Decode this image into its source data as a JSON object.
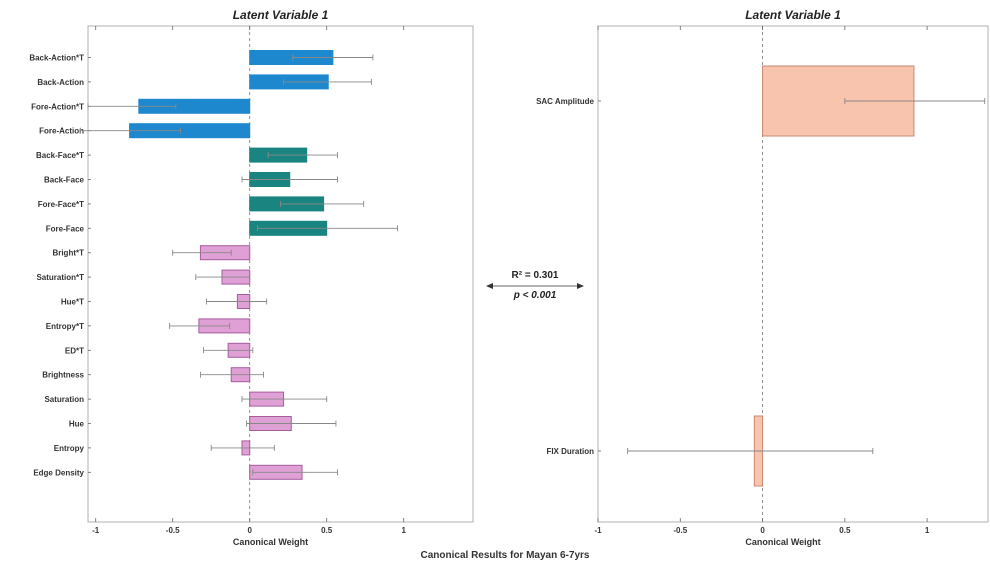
{
  "figure": {
    "suptitle": "Canonical Results for Mayan 6-7yrs",
    "annotation": {
      "r2_label": "R² = 0.301",
      "p_label": "p < 0.001"
    }
  },
  "chart_data": [
    {
      "type": "bar",
      "orientation": "horizontal",
      "title": "Latent Variable 1",
      "xlabel": "Canonical Weight",
      "xlim": [
        -1.05,
        1.45
      ],
      "xticks": [
        -1,
        -0.5,
        0,
        0.5,
        1
      ],
      "xtick_labels": [
        "-1",
        "-0.5",
        "0",
        "0.5",
        "1"
      ],
      "grid": false,
      "categories": [
        "Back-Action*T",
        "Back-Action",
        "Fore-Action*T",
        "Fore-Action",
        "Back-Face*T",
        "Back-Face",
        "Fore-Face*T",
        "Fore-Face",
        "Bright*T",
        "Saturation*T",
        "Hue*T",
        "Entropy*T",
        "ED*T",
        "Brightness",
        "Saturation",
        "Hue",
        "Entropy",
        "Edge Density"
      ],
      "values": [
        0.54,
        0.51,
        -0.72,
        -0.78,
        0.37,
        0.26,
        0.48,
        0.5,
        -0.32,
        -0.18,
        -0.08,
        -0.33,
        -0.14,
        -0.12,
        0.22,
        0.27,
        -0.05,
        0.34
      ],
      "errors_low": [
        0.28,
        0.22,
        -1.05,
        -1.1,
        0.12,
        -0.05,
        0.2,
        0.05,
        -0.5,
        -0.35,
        -0.28,
        -0.52,
        -0.3,
        -0.32,
        -0.05,
        -0.02,
        -0.25,
        0.02
      ],
      "errors_high": [
        0.8,
        0.79,
        -0.48,
        -0.45,
        0.57,
        0.57,
        0.74,
        0.96,
        -0.12,
        0.0,
        0.11,
        -0.13,
        0.02,
        0.09,
        0.5,
        0.56,
        0.16,
        0.57
      ],
      "bar_colors": [
        "#1e88cf",
        "#1e88cf",
        "#1e88cf",
        "#1e88cf",
        "#1a8480",
        "#1a8480",
        "#1a8480",
        "#1a8480",
        "#dfa0d6",
        "#dfa0d6",
        "#dfa0d6",
        "#dfa0d6",
        "#dfa0d6",
        "#dfa0d6",
        "#dfa0d6",
        "#dfa0d6",
        "#dfa0d6",
        "#dfa0d6"
      ],
      "bar_edge_colors": [
        "#1e88cf",
        "#1e88cf",
        "#1e88cf",
        "#1e88cf",
        "#1a8480",
        "#1a8480",
        "#1a8480",
        "#1a8480",
        "#a75d9c",
        "#a75d9c",
        "#a75d9c",
        "#a75d9c",
        "#a75d9c",
        "#a75d9c",
        "#a75d9c",
        "#a75d9c",
        "#a75d9c",
        "#a75d9c"
      ]
    },
    {
      "type": "bar",
      "orientation": "horizontal",
      "title": "Latent Variable 1",
      "xlabel": "Canonical Weight",
      "xlim": [
        -1.0,
        1.37
      ],
      "xticks": [
        -1,
        -0.5,
        0,
        0.5,
        1
      ],
      "xtick_labels": [
        "-1",
        "-0.5",
        "0",
        "0.5",
        "1"
      ],
      "grid": false,
      "categories": [
        "SAC Amplitude",
        "FIX Duration"
      ],
      "values": [
        0.92,
        -0.05
      ],
      "errors_low": [
        0.5,
        -0.82
      ],
      "errors_high": [
        1.35,
        0.67
      ],
      "bar_colors": [
        "#f8c4ad",
        "#f8c4ad"
      ],
      "bar_edge_colors": [
        "#c88a72",
        "#c88a72"
      ]
    }
  ]
}
